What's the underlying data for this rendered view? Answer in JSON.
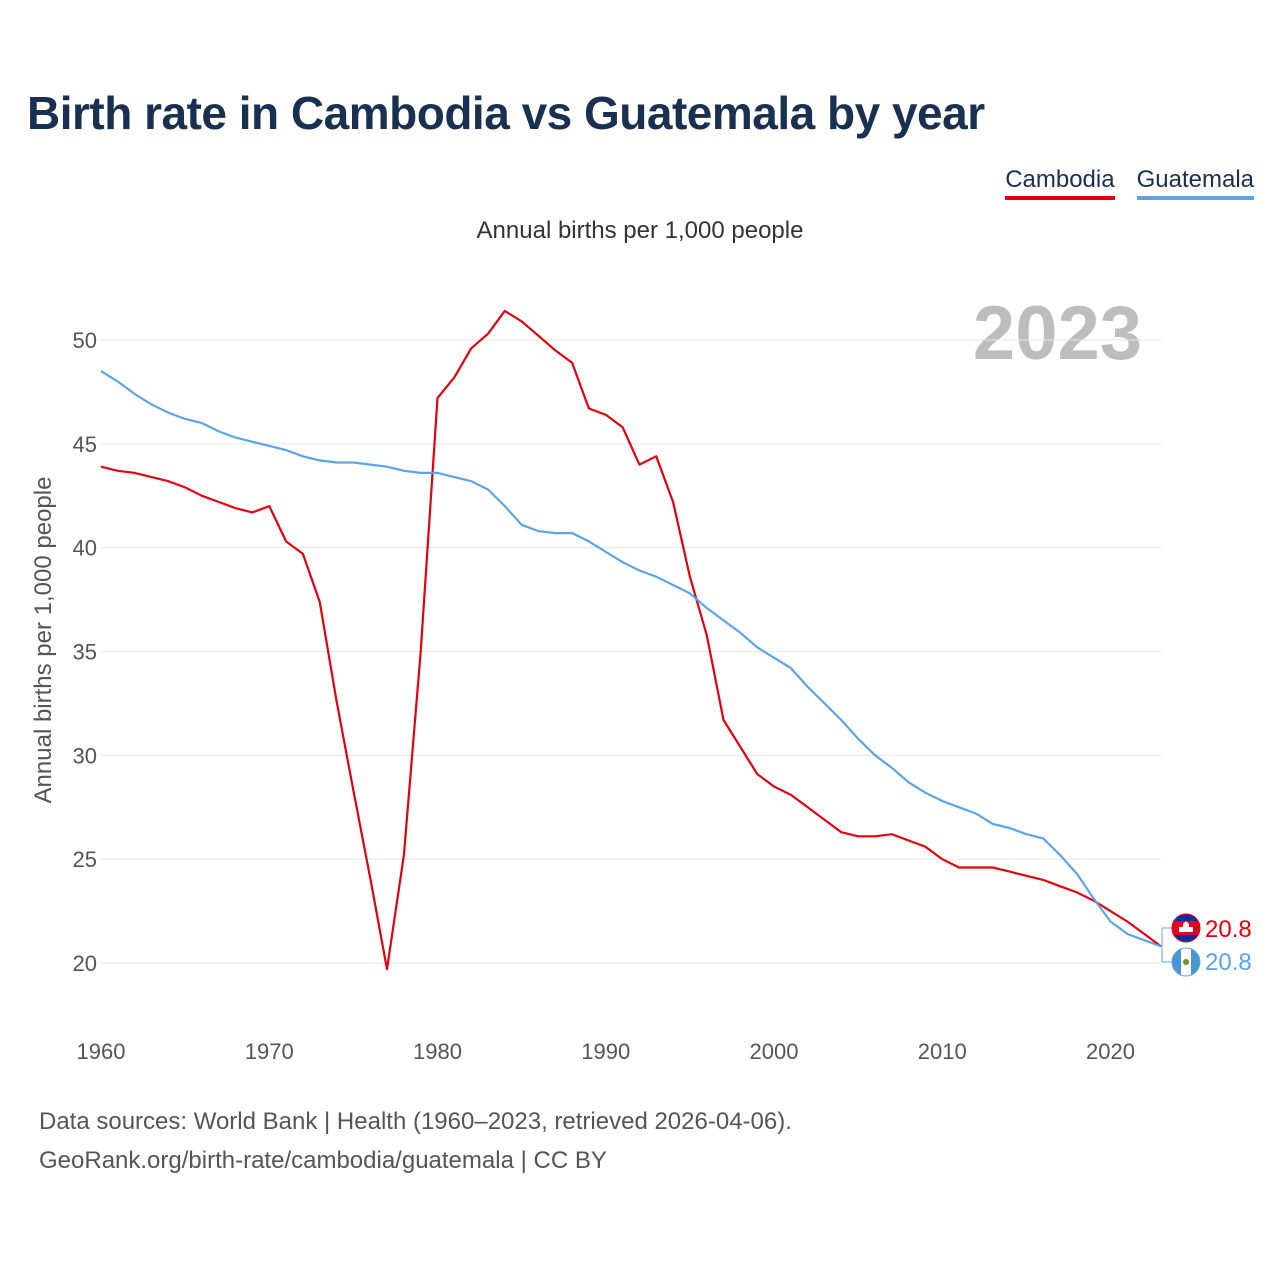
{
  "title": "Birth rate in Cambodia vs Guatemala by year",
  "subtitle": "Annual births per 1,000 people",
  "year_label": "2023",
  "legend": [
    {
      "name": "Cambodia",
      "color": "#e3000f"
    },
    {
      "name": "Guatemala",
      "color": "#5ba4e6"
    }
  ],
  "footer": {
    "line1": "Data sources: World Bank | Health (1960–2023, retrieved 2026-04-06).",
    "line2": "GeoRank.org/birth-rate/cambodia/guatemala | CC BY"
  },
  "end_labels": {
    "cambodia": "20.8",
    "guatemala": "20.8"
  },
  "chart_data": {
    "type": "line",
    "title": "Birth rate in Cambodia vs Guatemala by year",
    "xlabel": "",
    "ylabel": "Annual births per 1,000 people",
    "xlim": [
      1960,
      2023
    ],
    "ylim": [
      18,
      53
    ],
    "x_ticks": [
      1960,
      1970,
      1980,
      1990,
      2000,
      2010,
      2020
    ],
    "y_ticks": [
      20,
      25,
      30,
      35,
      40,
      45,
      50
    ],
    "grid": true,
    "legend_position": "top-right",
    "x": [
      1960,
      1961,
      1962,
      1963,
      1964,
      1965,
      1966,
      1967,
      1968,
      1969,
      1970,
      1971,
      1972,
      1973,
      1974,
      1975,
      1976,
      1977,
      1978,
      1979,
      1980,
      1981,
      1982,
      1983,
      1984,
      1985,
      1986,
      1987,
      1988,
      1989,
      1990,
      1991,
      1992,
      1993,
      1994,
      1995,
      1996,
      1997,
      1998,
      1999,
      2000,
      2001,
      2002,
      2003,
      2004,
      2005,
      2006,
      2007,
      2008,
      2009,
      2010,
      2011,
      2012,
      2013,
      2014,
      2015,
      2016,
      2017,
      2018,
      2019,
      2020,
      2021,
      2022,
      2023
    ],
    "series": [
      {
        "name": "Cambodia",
        "color": "#e3000f",
        "values": [
          43.9,
          43.7,
          43.6,
          43.4,
          43.2,
          42.9,
          42.5,
          42.2,
          41.9,
          41.7,
          42.0,
          40.3,
          39.7,
          37.4,
          32.6,
          28.3,
          24.1,
          19.7,
          25.2,
          35.0,
          47.2,
          48.2,
          49.6,
          50.3,
          51.4,
          50.9,
          50.2,
          49.5,
          48.9,
          46.7,
          46.4,
          45.8,
          44.0,
          44.4,
          42.2,
          38.6,
          35.8,
          31.7,
          30.4,
          29.1,
          28.5,
          28.1,
          27.5,
          26.9,
          26.3,
          26.1,
          26.1,
          26.2,
          25.9,
          25.6,
          25.0,
          24.6,
          24.6,
          24.6,
          24.4,
          24.2,
          24.0,
          23.7,
          23.4,
          23.0,
          22.5,
          22.0,
          21.4,
          20.8
        ]
      },
      {
        "name": "Guatemala",
        "color": "#5ba4e6",
        "values": [
          48.5,
          48.0,
          47.4,
          46.9,
          46.5,
          46.2,
          46.0,
          45.6,
          45.3,
          45.1,
          44.9,
          44.7,
          44.4,
          44.2,
          44.1,
          44.1,
          44.0,
          43.9,
          43.7,
          43.6,
          43.6,
          43.4,
          43.2,
          42.8,
          42.0,
          41.1,
          40.8,
          40.7,
          40.7,
          40.3,
          39.8,
          39.3,
          38.9,
          38.6,
          38.2,
          37.8,
          37.1,
          36.5,
          35.9,
          35.2,
          34.7,
          34.2,
          33.3,
          32.5,
          31.7,
          30.8,
          30.0,
          29.4,
          28.7,
          28.2,
          27.8,
          27.5,
          27.2,
          26.7,
          26.5,
          26.2,
          26.0,
          25.2,
          24.3,
          23.1,
          22.0,
          21.4,
          21.1,
          20.8
        ]
      }
    ]
  }
}
